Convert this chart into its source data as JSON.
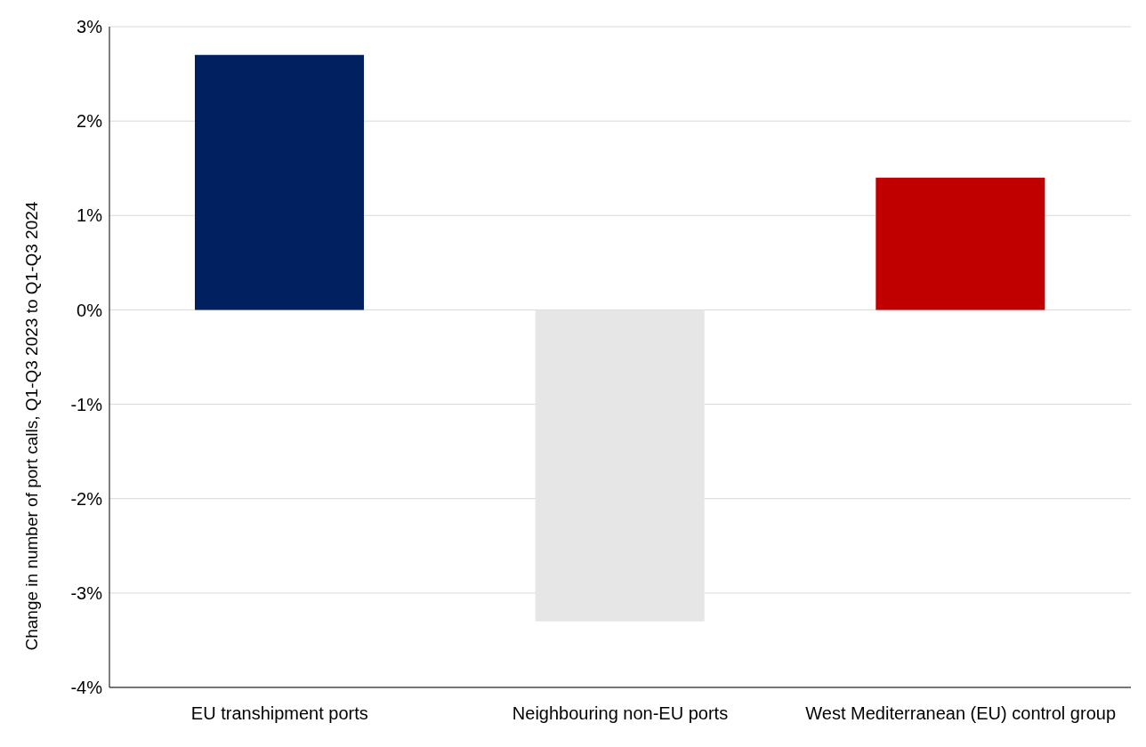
{
  "chart_data": {
    "type": "bar",
    "ylabel": "Change in number of port calls, Q1-Q3 2023 to Q1-Q3 2024",
    "categories": [
      "EU transhipment ports",
      "Neighbouring non-EU ports",
      "West Mediterranean (EU) control group"
    ],
    "values": [
      2.7,
      -3.3,
      1.4
    ],
    "colors": [
      "#002060",
      "#e6e6e6",
      "#c00000"
    ],
    "ylim": [
      -4,
      3
    ],
    "yticks": [
      {
        "value": -4,
        "label": "-4%"
      },
      {
        "value": -3,
        "label": "-3%"
      },
      {
        "value": -2,
        "label": "-2%"
      },
      {
        "value": -1,
        "label": "-1%"
      },
      {
        "value": 0,
        "label": "0%"
      },
      {
        "value": 1,
        "label": "1%"
      },
      {
        "value": 2,
        "label": "2%"
      },
      {
        "value": 3,
        "label": "3%"
      }
    ],
    "grid": "y"
  }
}
